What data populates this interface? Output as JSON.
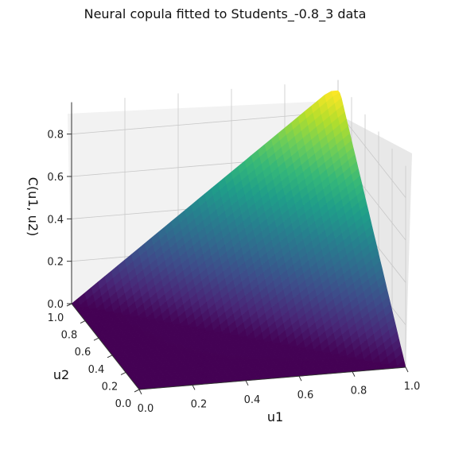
{
  "chart_data": {
    "type": "surface3d",
    "title": "Neural copula fitted to Students_-0.8_3 data",
    "xlabel": "u1",
    "ylabel": "u2",
    "zlabel": "C(u1, u2)",
    "xlim": [
      0.0,
      1.0
    ],
    "ylim": [
      0.0,
      1.0
    ],
    "zlim": [
      0.0,
      0.9
    ],
    "x_ticks": [
      "0.0",
      "0.2",
      "0.4",
      "0.6",
      "0.8",
      "1.0"
    ],
    "y_ticks": [
      "0.0",
      "0.2",
      "0.4",
      "0.6",
      "0.8",
      "1.0"
    ],
    "z_ticks": [
      "0.0",
      "0.2",
      "0.4",
      "0.6",
      "0.8"
    ],
    "colormap": "viridis",
    "grid": true,
    "surface_description": "C(u1,u2) ≈ max(0, u1 + u2 - 1) (countermonotonic-like); peak ≈ 0.9 at (1,1), ≈ 0 along low corner"
  }
}
